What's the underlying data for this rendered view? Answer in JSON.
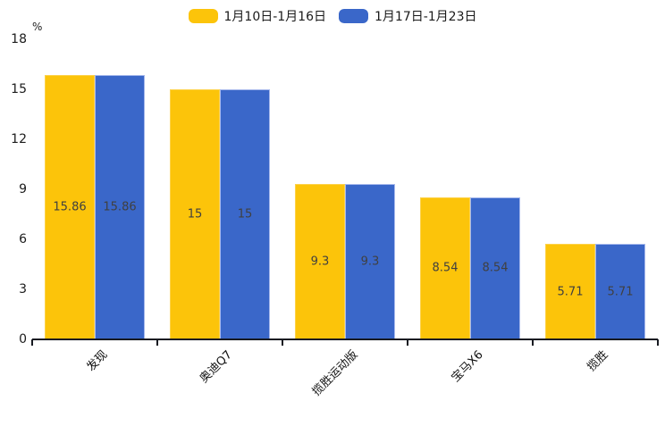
{
  "legend": [
    {
      "label": "1月10日-1月16日",
      "color": "#FCC40A"
    },
    {
      "label": "1月17日-1月23日",
      "color": "#3A67C9"
    }
  ],
  "chart_data": {
    "type": "bar",
    "title": "",
    "xlabel": "",
    "ylabel": "%",
    "categories": [
      "发现",
      "奥迪Q7",
      "揽胜运动版",
      "宝马X6",
      "揽胜"
    ],
    "series": [
      {
        "name": "1月10日-1月16日",
        "color": "#FCC40A",
        "values": [
          15.86,
          15,
          9.3,
          8.54,
          5.71
        ]
      },
      {
        "name": "1月17日-1月23日",
        "color": "#3A67C9",
        "values": [
          15.86,
          15,
          9.3,
          8.54,
          5.71
        ]
      }
    ],
    "ylim": [
      0,
      18
    ],
    "yticks": [
      0,
      3,
      6,
      9,
      12,
      15,
      18
    ],
    "grid": false,
    "legend_position": "top-center",
    "value_labels": "centered-inside-bars",
    "x_label_rotation_deg": 45
  }
}
